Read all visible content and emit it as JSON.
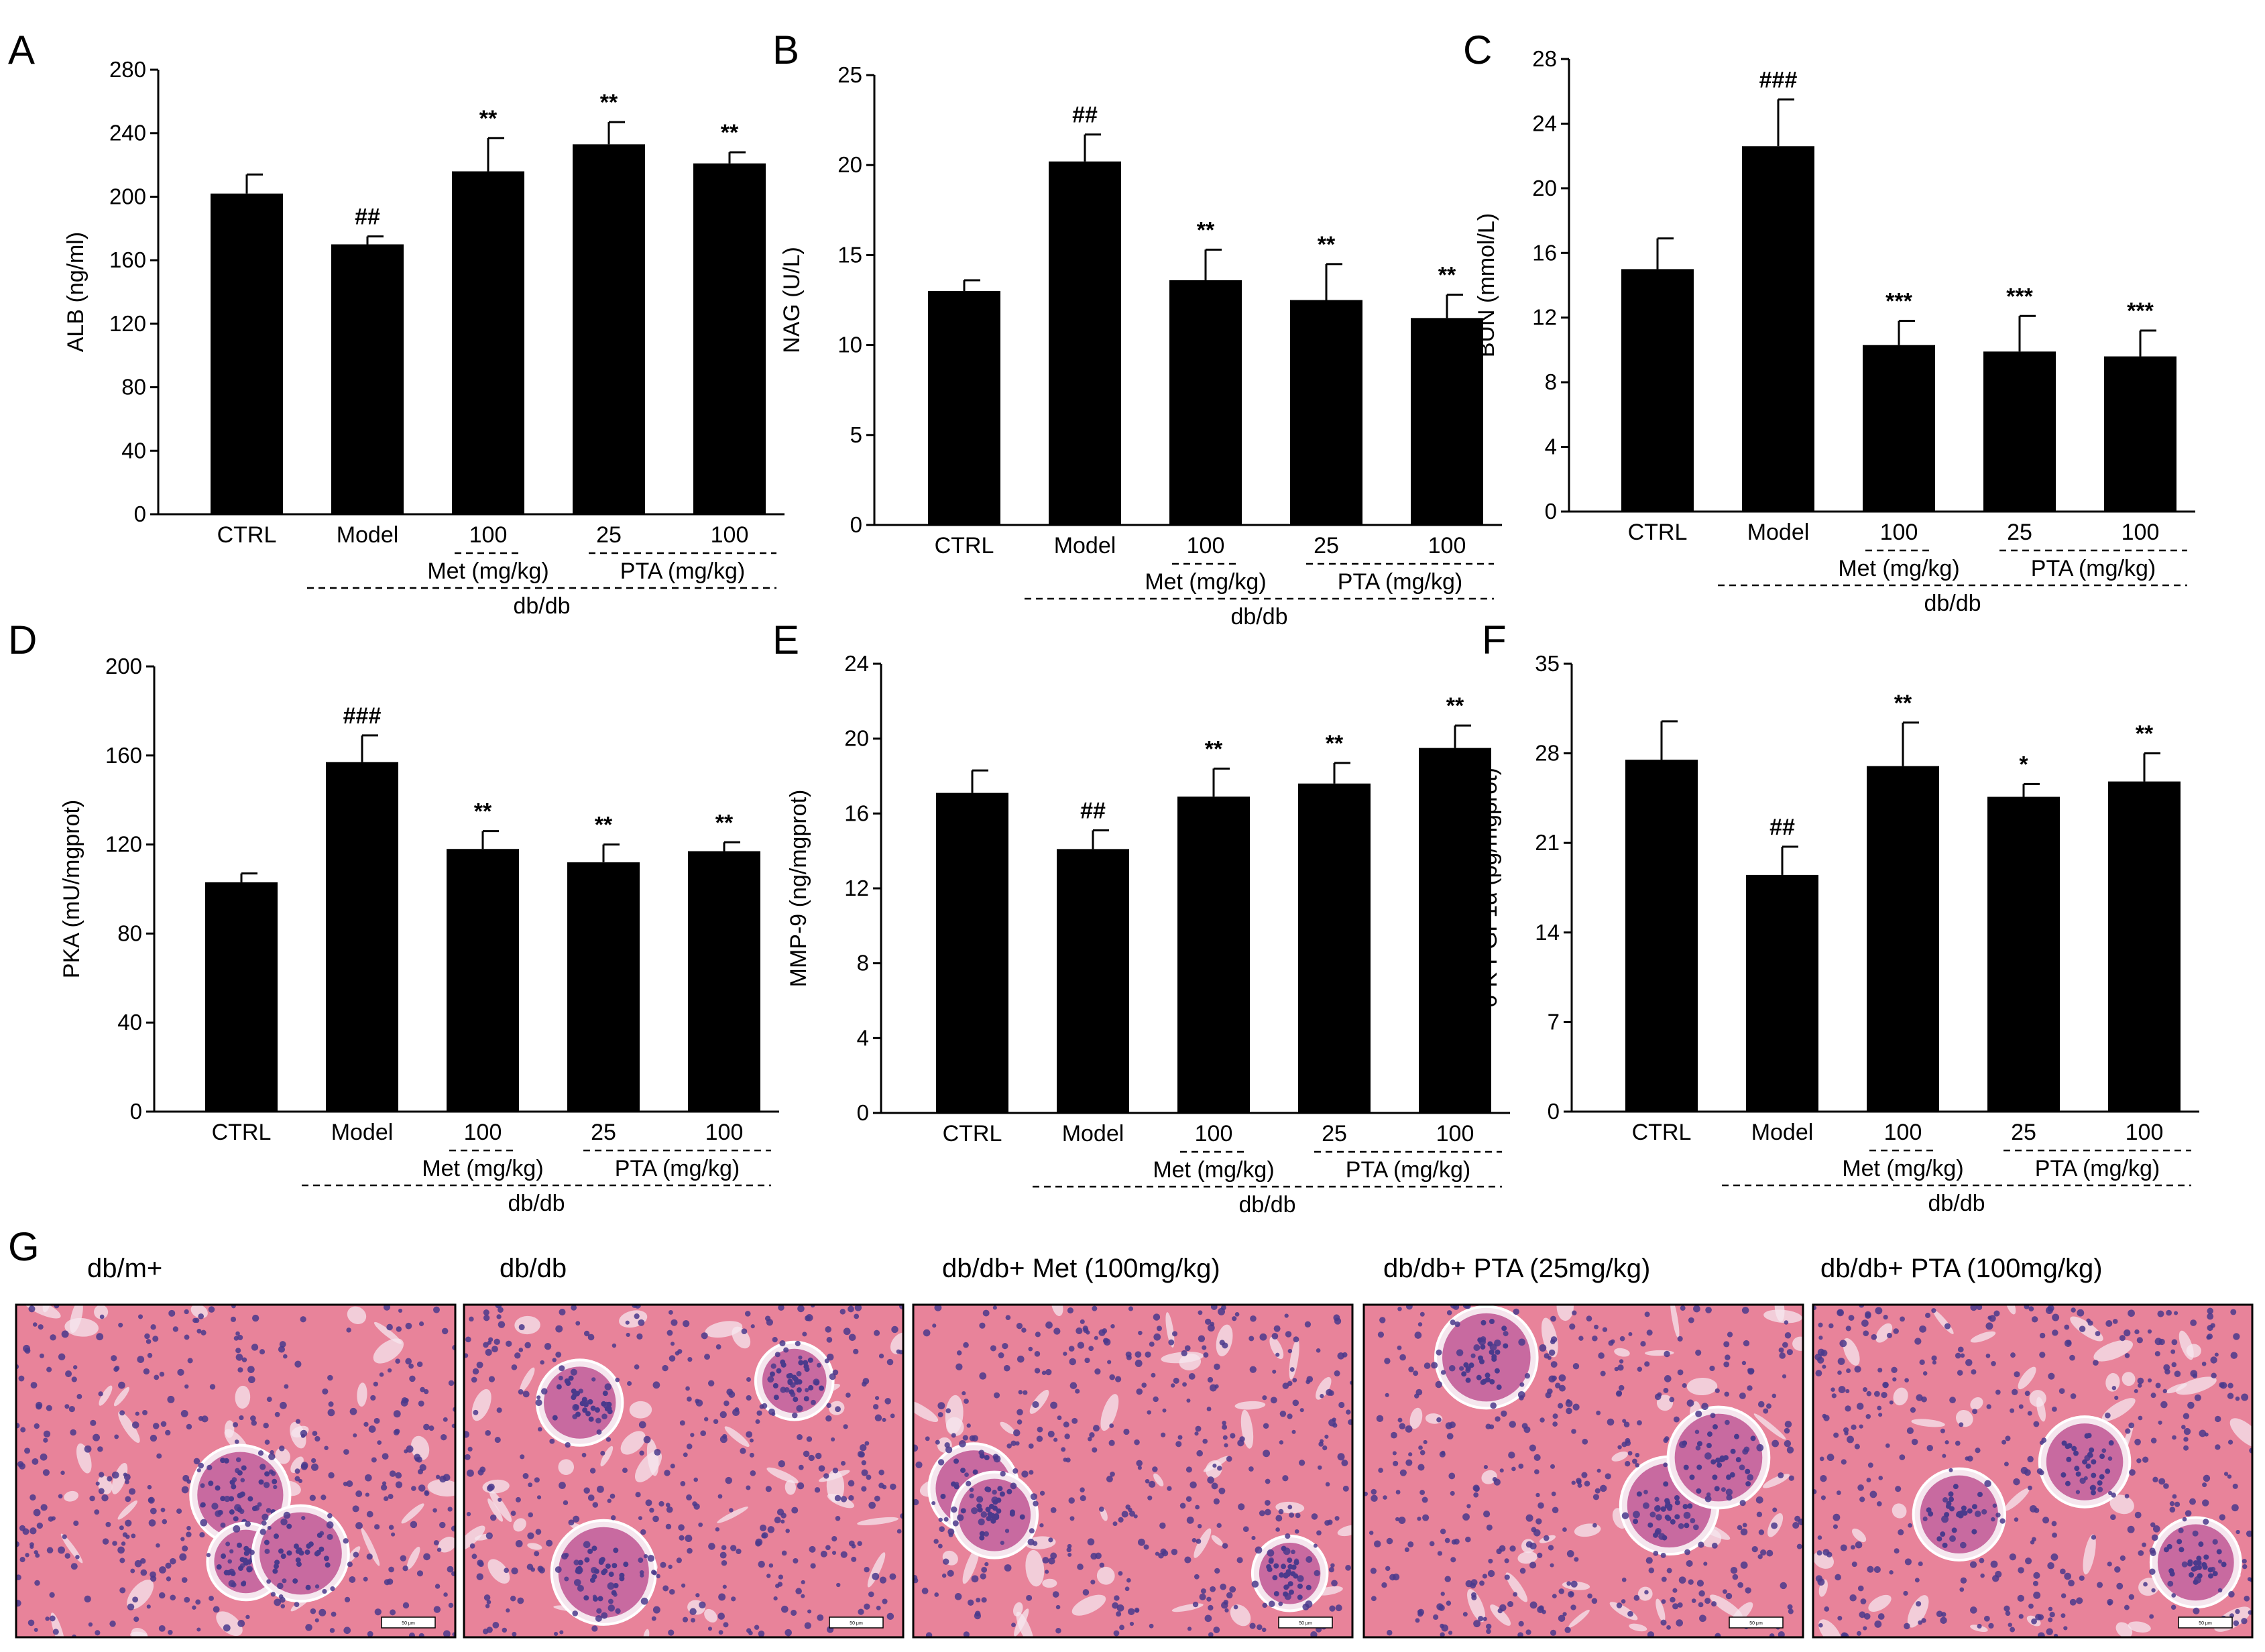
{
  "figure": {
    "bar_color": "#000000",
    "tissue_colors": {
      "background": "#e8839a",
      "nucleus": "#4a3a8c",
      "lumen": "#f5e6ee"
    }
  },
  "chart_data": [
    {
      "id": "A",
      "type": "bar",
      "letter": "A",
      "ylabel": "ALB (ng/ml)",
      "categories": [
        "CTRL",
        "Model",
        "100",
        "25",
        "100"
      ],
      "values": [
        202,
        170,
        216,
        233,
        221
      ],
      "errors": [
        12,
        5,
        21,
        14,
        7
      ],
      "significance": [
        "",
        "##",
        "**",
        "**",
        "**"
      ],
      "ylim": [
        0,
        280
      ],
      "yticks": [
        0,
        40,
        80,
        120,
        160,
        200,
        240,
        280
      ],
      "groups": {
        "met": "Met (mg/kg)",
        "pta": "PTA (mg/kg)",
        "dbdb": "db/db"
      }
    },
    {
      "id": "B",
      "type": "bar",
      "letter": "B",
      "ylabel": "NAG (U/L)",
      "categories": [
        "CTRL",
        "Model",
        "100",
        "25",
        "100"
      ],
      "values": [
        13,
        20.2,
        13.6,
        12.5,
        11.5
      ],
      "errors": [
        0.6,
        1.5,
        1.7,
        2.0,
        1.3
      ],
      "significance": [
        "",
        "##",
        "**",
        "**",
        "**"
      ],
      "ylim": [
        0,
        25
      ],
      "yticks": [
        0,
        5,
        10,
        15,
        20,
        25
      ],
      "groups": {
        "met": "Met (mg/kg)",
        "pta": "PTA (mg/kg)",
        "dbdb": "db/db"
      }
    },
    {
      "id": "C",
      "type": "bar",
      "letter": "C",
      "ylabel": "BUN (mmol/L)",
      "categories": [
        "CTRL",
        "Model",
        "100",
        "25",
        "100"
      ],
      "values": [
        15,
        22.6,
        10.3,
        9.9,
        9.6
      ],
      "errors": [
        1.9,
        2.9,
        1.5,
        2.2,
        1.6
      ],
      "significance": [
        "",
        "###",
        "***",
        "***",
        "***"
      ],
      "ylim": [
        0,
        28
      ],
      "yticks": [
        0,
        4,
        8,
        12,
        16,
        20,
        24,
        28
      ],
      "groups": {
        "met": "Met (mg/kg)",
        "pta": "PTA (mg/kg)",
        "dbdb": "db/db"
      }
    },
    {
      "id": "D",
      "type": "bar",
      "letter": "D",
      "ylabel": "PKA (mU/mgprot)",
      "categories": [
        "CTRL",
        "Model",
        "100",
        "25",
        "100"
      ],
      "values": [
        103,
        157,
        118,
        112,
        117
      ],
      "errors": [
        4,
        12,
        8,
        8,
        4
      ],
      "significance": [
        "",
        "###",
        "**",
        "**",
        "**"
      ],
      "ylim": [
        0,
        200
      ],
      "yticks": [
        0,
        40,
        80,
        120,
        160,
        200
      ],
      "groups": {
        "met": "Met (mg/kg)",
        "pta": "PTA (mg/kg)",
        "dbdb": "db/db"
      }
    },
    {
      "id": "E",
      "type": "bar",
      "letter": "E",
      "ylabel": "MMP-9 (ng/mgprot)",
      "categories": [
        "CTRL",
        "Model",
        "100",
        "25",
        "100"
      ],
      "values": [
        17.1,
        14.1,
        16.9,
        17.6,
        19.5
      ],
      "errors": [
        1.2,
        1.0,
        1.5,
        1.1,
        1.2
      ],
      "significance": [
        "",
        "##",
        "**",
        "**",
        "**"
      ],
      "ylim": [
        0,
        24
      ],
      "yticks": [
        0,
        4,
        8,
        12,
        16,
        20,
        24
      ],
      "groups": {
        "met": "Met (mg/kg)",
        "pta": "PTA (mg/kg)",
        "dbdb": "db/db"
      }
    },
    {
      "id": "F",
      "type": "bar",
      "letter": "F",
      "ylabel": "6-K-PGF1α (pg/mgprot)",
      "categories": [
        "CTRL",
        "Model",
        "100",
        "25",
        "100"
      ],
      "values": [
        27.5,
        18.5,
        27,
        24.6,
        25.8
      ],
      "errors": [
        3.0,
        2.2,
        3.4,
        1.0,
        2.2
      ],
      "significance": [
        "",
        "##",
        "**",
        "*",
        "**"
      ],
      "ylim": [
        0,
        35
      ],
      "yticks": [
        0,
        7,
        14,
        21,
        28,
        35
      ],
      "groups": {
        "met": "Met (mg/kg)",
        "pta": "PTA (mg/kg)",
        "dbdb": "db/db"
      }
    }
  ],
  "histology": {
    "letter": "G",
    "panels": [
      {
        "title": "db/m+",
        "scale": "50 μm",
        "seed": 11
      },
      {
        "title": "db/db",
        "scale": "50 μm",
        "seed": 23
      },
      {
        "title": "db/db+ Met (100mg/kg)",
        "scale": "50 μm",
        "seed": 37
      },
      {
        "title": "db/db+ PTA (25mg/kg)",
        "scale": "50 μm",
        "seed": 51
      },
      {
        "title": "db/db+ PTA (100mg/kg)",
        "scale": "50 μm",
        "seed": 67
      }
    ]
  }
}
